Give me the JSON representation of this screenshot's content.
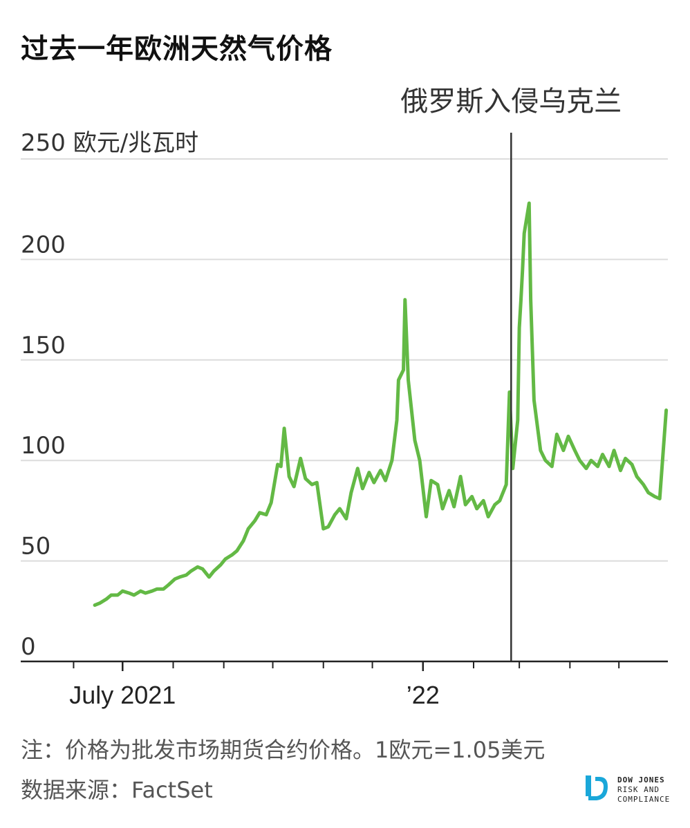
{
  "title": "过去一年欧洲天然气价格",
  "note": "注：价格为批发市场期货合约价格。1欧元=1.05美元",
  "source": "数据来源：FactSet",
  "logo": {
    "brand": "DOW JONES",
    "line2": "RISK AND",
    "line3": "COMPLIANCE",
    "color": "#1aa7d9"
  },
  "chart_data": {
    "type": "line",
    "unit_label": "250 欧元/兆瓦时",
    "ylim": [
      0,
      250
    ],
    "yticks": [
      0,
      50,
      100,
      150,
      200,
      250
    ],
    "ytick_labels": [
      "0",
      "50",
      "100",
      "150",
      "200",
      ""
    ],
    "xlim": [
      "2021-05-28",
      "2022-05-31"
    ],
    "xticks": [
      "2021-06-01",
      "2021-07-01",
      "2021-08-01",
      "2021-09-01",
      "2021-10-01",
      "2021-11-01",
      "2021-12-01",
      "2022-01-01",
      "2022-02-01",
      "2022-03-01",
      "2022-04-01",
      "2022-05-01"
    ],
    "xtick_labels": [
      {
        "date": "2021-07-01",
        "label": "July 2021"
      },
      {
        "date": "2022-01-01",
        "label": "’22"
      }
    ],
    "grid": true,
    "line_color": "#63b945",
    "annotations": [
      {
        "date": "2022-02-24",
        "label": "俄罗斯入侵乌克兰"
      }
    ],
    "series": [
      {
        "x": [
          "2021-06-14",
          "2021-06-17",
          "2021-06-21",
          "2021-06-24",
          "2021-06-28",
          "2021-07-01",
          "2021-07-05",
          "2021-07-08",
          "2021-07-12",
          "2021-07-15",
          "2021-07-19",
          "2021-07-22",
          "2021-07-26",
          "2021-07-29",
          "2021-08-02",
          "2021-08-05",
          "2021-08-09",
          "2021-08-12",
          "2021-08-16",
          "2021-08-19",
          "2021-08-23",
          "2021-08-26",
          "2021-08-30",
          "2021-09-02",
          "2021-09-06",
          "2021-09-09",
          "2021-09-13",
          "2021-09-16",
          "2021-09-20",
          "2021-09-23",
          "2021-09-27",
          "2021-09-30",
          "2021-10-04",
          "2021-10-06",
          "2021-10-08",
          "2021-10-11",
          "2021-10-14",
          "2021-10-18",
          "2021-10-21",
          "2021-10-25",
          "2021-10-28",
          "2021-11-01",
          "2021-11-04",
          "2021-11-08",
          "2021-11-11",
          "2021-11-15",
          "2021-11-18",
          "2021-11-22",
          "2021-11-25",
          "2021-11-29",
          "2021-12-02",
          "2021-12-06",
          "2021-12-09",
          "2021-12-13",
          "2021-12-16",
          "2021-12-17",
          "2021-12-20",
          "2021-12-21",
          "2021-12-23",
          "2021-12-27",
          "2021-12-30",
          "2022-01-03",
          "2022-01-06",
          "2022-01-10",
          "2022-01-13",
          "2022-01-17",
          "2022-01-20",
          "2022-01-24",
          "2022-01-27",
          "2022-01-31",
          "2022-02-03",
          "2022-02-07",
          "2022-02-10",
          "2022-02-14",
          "2022-02-17",
          "2022-02-21",
          "2022-02-23",
          "2022-02-25",
          "2022-02-28",
          "2022-03-01",
          "2022-03-02",
          "2022-03-03",
          "2022-03-04",
          "2022-03-07",
          "2022-03-08",
          "2022-03-10",
          "2022-03-14",
          "2022-03-17",
          "2022-03-21",
          "2022-03-24",
          "2022-03-28",
          "2022-03-31",
          "2022-04-04",
          "2022-04-07",
          "2022-04-11",
          "2022-04-14",
          "2022-04-18",
          "2022-04-21",
          "2022-04-25",
          "2022-04-28",
          "2022-05-02",
          "2022-05-05",
          "2022-05-09",
          "2022-05-12",
          "2022-05-16",
          "2022-05-19",
          "2022-05-23",
          "2022-05-26",
          "2022-05-30"
        ],
        "y": [
          28,
          29,
          31,
          33,
          33,
          35,
          34,
          33,
          35,
          34,
          35,
          36,
          36,
          38,
          41,
          42,
          43,
          45,
          47,
          46,
          42,
          45,
          48,
          51,
          53,
          55,
          60,
          66,
          70,
          74,
          73,
          79,
          98,
          97,
          116,
          92,
          87,
          101,
          91,
          88,
          89,
          66,
          67,
          73,
          76,
          71,
          84,
          96,
          86,
          94,
          89,
          95,
          90,
          100,
          120,
          140,
          145,
          180,
          140,
          110,
          100,
          72,
          90,
          88,
          76,
          85,
          77,
          92,
          78,
          82,
          76,
          80,
          72,
          78,
          80,
          88,
          134,
          96,
          120,
          166,
          180,
          195,
          213,
          228,
          180,
          130,
          105,
          100,
          97,
          113,
          105,
          112,
          105,
          100,
          96,
          100,
          97,
          103,
          97,
          105,
          95,
          101,
          98,
          92,
          88,
          84,
          82,
          81,
          125
        ]
      }
    ]
  }
}
